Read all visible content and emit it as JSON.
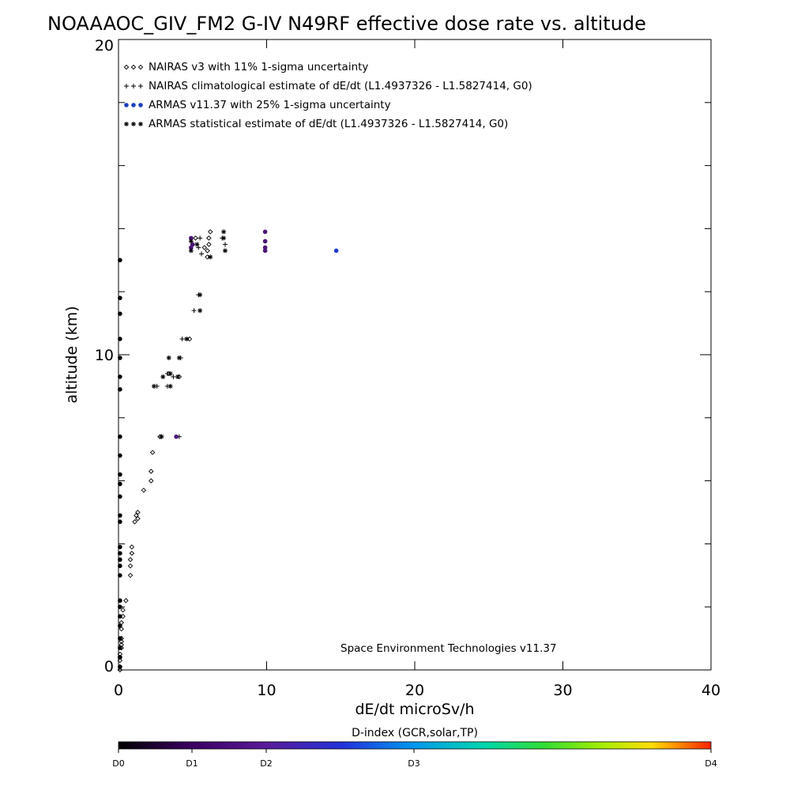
{
  "chart_data": {
    "type": "scatter",
    "title": "NOAAAOC_GIV_FM2 G-IV   N49RF  effective dose rate vs. altitude",
    "xlabel": "dE/dt microSv/h",
    "ylabel": "altitude (km)",
    "xlim": [
      0,
      40
    ],
    "ylim": [
      0,
      20
    ],
    "x_ticks": [
      "0",
      "10",
      "20",
      "30",
      "40"
    ],
    "y_ticks": [
      "0",
      "10",
      "20"
    ],
    "legend_position": "top-left",
    "credit": "Space Environment Technologies v11.37",
    "colorbar": {
      "label": "D-index (GCR,solar,TP)",
      "tick_labels": [
        "D0",
        "D1",
        "D2",
        "D3",
        "D4"
      ],
      "tick_values": [
        0,
        1,
        2,
        3,
        4
      ],
      "min": 0,
      "max": 4
    },
    "series": [
      {
        "name": "NAIRAS v3 with 11% 1-sigma uncertainty",
        "marker": "diamond",
        "color": "#000000",
        "points": [
          [
            6.1,
            13.5
          ],
          [
            6.1,
            13.7
          ],
          [
            6.2,
            13.9
          ],
          [
            5.2,
            13.7
          ],
          [
            5.8,
            13.4
          ],
          [
            6.0,
            13.3
          ],
          [
            6.0,
            13.1
          ],
          [
            4.8,
            10.5
          ],
          [
            3.4,
            9.4
          ],
          [
            4.1,
            9.3
          ],
          [
            2.8,
            7.4
          ],
          [
            2.3,
            6.9
          ],
          [
            2.2,
            6.3
          ],
          [
            2.2,
            6.0
          ],
          [
            1.7,
            5.7
          ],
          [
            1.3,
            5.0
          ],
          [
            1.2,
            4.9
          ],
          [
            1.3,
            4.8
          ],
          [
            1.1,
            4.7
          ],
          [
            0.9,
            3.9
          ],
          [
            0.9,
            3.7
          ],
          [
            0.8,
            3.5
          ],
          [
            0.8,
            3.3
          ],
          [
            0.8,
            3.0
          ],
          [
            0.5,
            2.2
          ],
          [
            0.3,
            1.9
          ],
          [
            0.3,
            1.7
          ],
          [
            0.2,
            1.5
          ],
          [
            0.2,
            1.3
          ],
          [
            0.2,
            1.0
          ],
          [
            0.2,
            0.9
          ],
          [
            0.2,
            0.8
          ],
          [
            0.2,
            0.7
          ],
          [
            0.1,
            0.5
          ],
          [
            0.1,
            0.4
          ],
          [
            0.1,
            0.3
          ],
          [
            0.1,
            0.1
          ],
          [
            0.1,
            0.0
          ]
        ]
      },
      {
        "name": "NAIRAS climatological estimate of dE/dt (L1.4937326 - L1.5827414, G0)",
        "marker": "plus",
        "color": "#000000",
        "points": [
          [
            5.4,
            13.4
          ],
          [
            5.5,
            13.7
          ],
          [
            7.0,
            13.7
          ],
          [
            7.2,
            13.5
          ],
          [
            5.6,
            13.2
          ],
          [
            5.4,
            11.9
          ],
          [
            5.1,
            11.4
          ],
          [
            4.3,
            10.5
          ],
          [
            4.2,
            9.9
          ],
          [
            3.7,
            9.3
          ],
          [
            3.3,
            9.4
          ],
          [
            2.6,
            9.0
          ],
          [
            3.3,
            9.0
          ],
          [
            2.9,
            7.4
          ],
          [
            4.1,
            7.4
          ]
        ]
      },
      {
        "name": "ARMAS v11.37 with 25% 1-sigma uncertainty",
        "marker": "dot",
        "color": "#1a3fc0",
        "points": [
          [
            4.9,
            13.4,
            1.2
          ],
          [
            4.9,
            13.7,
            1.0
          ],
          [
            5.0,
            13.5,
            1.1
          ],
          [
            9.9,
            13.6,
            1.4
          ],
          [
            9.9,
            13.9,
            1.3
          ],
          [
            9.9,
            13.3,
            1.2
          ],
          [
            9.9,
            13.4,
            1.3
          ],
          [
            14.7,
            13.3,
            2.0
          ],
          [
            3.9,
            7.4,
            1.1
          ],
          [
            0.1,
            13.0,
            0
          ],
          [
            0.1,
            11.8,
            0
          ],
          [
            0.1,
            11.3,
            0
          ],
          [
            0.1,
            10.5,
            0
          ],
          [
            0.1,
            9.9,
            0
          ],
          [
            0.1,
            9.3,
            0
          ],
          [
            0.1,
            8.9,
            0
          ],
          [
            0.1,
            7.4,
            0
          ],
          [
            0.1,
            6.8,
            0
          ],
          [
            0.1,
            6.2,
            0
          ],
          [
            0.1,
            5.9,
            0
          ],
          [
            0.1,
            5.5,
            0
          ],
          [
            0.1,
            4.9,
            0
          ],
          [
            0.1,
            4.7,
            0
          ],
          [
            0.1,
            3.9,
            0
          ],
          [
            0.1,
            3.7,
            0
          ],
          [
            0.1,
            3.5,
            0
          ],
          [
            0.1,
            3.3,
            0
          ],
          [
            0.1,
            3.0,
            0
          ],
          [
            0.1,
            2.2,
            0
          ],
          [
            0.1,
            2.0,
            0
          ],
          [
            0.1,
            1.7,
            0
          ],
          [
            0.1,
            1.4,
            0
          ],
          [
            0.1,
            1.0,
            0
          ],
          [
            0.1,
            0.7,
            0
          ],
          [
            0.1,
            0.4,
            0
          ],
          [
            0.1,
            0.1,
            0
          ]
        ]
      },
      {
        "name": "ARMAS statistical estimate of dE/dt (L1.4937326 - L1.5827414, G0)",
        "marker": "asterisk",
        "color": "#000000",
        "points": [
          [
            4.9,
            13.3
          ],
          [
            5.3,
            13.5
          ],
          [
            7.1,
            13.9
          ],
          [
            7.1,
            13.7
          ],
          [
            7.2,
            13.3
          ],
          [
            6.2,
            13.1
          ],
          [
            4.9,
            13.6
          ],
          [
            5.5,
            11.9
          ],
          [
            5.5,
            11.4
          ],
          [
            4.6,
            10.5
          ],
          [
            3.4,
            9.9
          ],
          [
            4.1,
            9.9
          ],
          [
            3.5,
            9.4
          ],
          [
            3.0,
            9.3
          ],
          [
            2.4,
            9.0
          ],
          [
            3.5,
            9.0
          ],
          [
            4.0,
            9.3
          ],
          [
            2.9,
            7.4
          ]
        ]
      }
    ]
  }
}
